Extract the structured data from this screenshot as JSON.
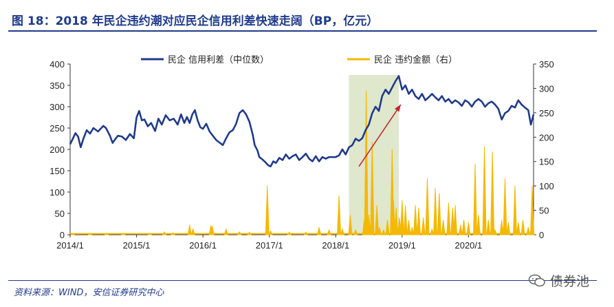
{
  "figure": {
    "title": "图 18：2018 年民企违约潮对应民企信用利差快速走阔（BP，亿元）",
    "source": "资料来源：WIND，安信证券研究中心",
    "watermark": "债券池",
    "watermark_icon": "wechat-icon"
  },
  "colors": {
    "spread_line": "#1f3a8a",
    "default_bars": "#f5b800",
    "highlight_band": "#dfe7cc",
    "arrow": "#c0282d",
    "title": "#1f3a8a"
  },
  "chart_data": {
    "type": "line",
    "x_axis": {
      "tick_labels": [
        "2014/1",
        "2015/1",
        "2016/1",
        "2017/1",
        "2018/1",
        "2019/1",
        "2020/1"
      ],
      "tick_dates": [
        2014.0,
        2015.0,
        2016.0,
        2017.0,
        2018.0,
        2019.0,
        2020.0
      ],
      "range": [
        2014.0,
        2020.98
      ]
    },
    "y_left": {
      "range": [
        0,
        400
      ],
      "ticks": [
        0,
        50,
        100,
        150,
        200,
        250,
        300,
        350,
        400
      ]
    },
    "y_right": {
      "range": [
        0,
        350
      ],
      "ticks": [
        0,
        50,
        100,
        150,
        200,
        250,
        300,
        350
      ]
    },
    "grid": false,
    "legend_position": "top",
    "highlight_period": [
      2018.2,
      2018.95
    ],
    "annotation": {
      "type": "arrow",
      "from": [
        2018.35,
        160
      ],
      "to": [
        2018.98,
        305
      ]
    },
    "series": [
      {
        "name": "民企 信用利差（中位数）",
        "axis": "left",
        "kind": "line",
        "points": [
          [
            2014.0,
            212
          ],
          [
            2014.04,
            225
          ],
          [
            2014.08,
            238
          ],
          [
            2014.12,
            230
          ],
          [
            2014.16,
            205
          ],
          [
            2014.2,
            225
          ],
          [
            2014.25,
            245
          ],
          [
            2014.3,
            237
          ],
          [
            2014.35,
            250
          ],
          [
            2014.42,
            242
          ],
          [
            2014.5,
            255
          ],
          [
            2014.54,
            250
          ],
          [
            2014.6,
            232
          ],
          [
            2014.64,
            215
          ],
          [
            2014.67,
            222
          ],
          [
            2014.72,
            232
          ],
          [
            2014.78,
            230
          ],
          [
            2014.84,
            222
          ],
          [
            2014.9,
            236
          ],
          [
            2014.96,
            226
          ],
          [
            2015.0,
            275
          ],
          [
            2015.04,
            290
          ],
          [
            2015.08,
            268
          ],
          [
            2015.12,
            270
          ],
          [
            2015.17,
            254
          ],
          [
            2015.22,
            262
          ],
          [
            2015.28,
            243
          ],
          [
            2015.33,
            272
          ],
          [
            2015.38,
            258
          ],
          [
            2015.44,
            280
          ],
          [
            2015.5,
            268
          ],
          [
            2015.56,
            272
          ],
          [
            2015.62,
            258
          ],
          [
            2015.67,
            282
          ],
          [
            2015.72,
            262
          ],
          [
            2015.76,
            276
          ],
          [
            2015.8,
            262
          ],
          [
            2015.84,
            282
          ],
          [
            2015.88,
            292
          ],
          [
            2015.92,
            268
          ],
          [
            2015.96,
            252
          ],
          [
            2016.0,
            248
          ],
          [
            2016.05,
            260
          ],
          [
            2016.1,
            242
          ],
          [
            2016.15,
            232
          ],
          [
            2016.2,
            222
          ],
          [
            2016.25,
            216
          ],
          [
            2016.3,
            210
          ],
          [
            2016.35,
            226
          ],
          [
            2016.4,
            240
          ],
          [
            2016.45,
            245
          ],
          [
            2016.5,
            260
          ],
          [
            2016.55,
            285
          ],
          [
            2016.6,
            292
          ],
          [
            2016.65,
            282
          ],
          [
            2016.7,
            265
          ],
          [
            2016.75,
            235
          ],
          [
            2016.78,
            210
          ],
          [
            2016.82,
            198
          ],
          [
            2016.85,
            182
          ],
          [
            2016.9,
            176
          ],
          [
            2016.94,
            170
          ],
          [
            2016.98,
            163
          ],
          [
            2017.02,
            160
          ],
          [
            2017.06,
            172
          ],
          [
            2017.1,
            168
          ],
          [
            2017.15,
            180
          ],
          [
            2017.2,
            175
          ],
          [
            2017.25,
            188
          ],
          [
            2017.3,
            178
          ],
          [
            2017.35,
            184
          ],
          [
            2017.4,
            188
          ],
          [
            2017.45,
            175
          ],
          [
            2017.5,
            182
          ],
          [
            2017.55,
            190
          ],
          [
            2017.6,
            178
          ],
          [
            2017.65,
            172
          ],
          [
            2017.7,
            184
          ],
          [
            2017.75,
            172
          ],
          [
            2017.8,
            182
          ],
          [
            2017.85,
            178
          ],
          [
            2017.9,
            182
          ],
          [
            2017.95,
            182
          ],
          [
            2018.0,
            182
          ],
          [
            2018.05,
            186
          ],
          [
            2018.1,
            200
          ],
          [
            2018.15,
            188
          ],
          [
            2018.2,
            205
          ],
          [
            2018.25,
            210
          ],
          [
            2018.3,
            225
          ],
          [
            2018.35,
            220
          ],
          [
            2018.4,
            226
          ],
          [
            2018.45,
            245
          ],
          [
            2018.5,
            258
          ],
          [
            2018.55,
            285
          ],
          [
            2018.6,
            300
          ],
          [
            2018.65,
            290
          ],
          [
            2018.7,
            325
          ],
          [
            2018.75,
            340
          ],
          [
            2018.8,
            330
          ],
          [
            2018.85,
            345
          ],
          [
            2018.9,
            360
          ],
          [
            2018.95,
            372
          ],
          [
            2019.0,
            340
          ],
          [
            2019.05,
            350
          ],
          [
            2019.1,
            330
          ],
          [
            2019.15,
            340
          ],
          [
            2019.2,
            325
          ],
          [
            2019.25,
            318
          ],
          [
            2019.3,
            330
          ],
          [
            2019.35,
            315
          ],
          [
            2019.4,
            322
          ],
          [
            2019.45,
            330
          ],
          [
            2019.5,
            322
          ],
          [
            2019.55,
            315
          ],
          [
            2019.6,
            325
          ],
          [
            2019.65,
            312
          ],
          [
            2019.7,
            318
          ],
          [
            2019.75,
            308
          ],
          [
            2019.8,
            315
          ],
          [
            2019.85,
            310
          ],
          [
            2019.9,
            302
          ],
          [
            2019.95,
            315
          ],
          [
            2020.0,
            310
          ],
          [
            2020.05,
            300
          ],
          [
            2020.1,
            312
          ],
          [
            2020.15,
            318
          ],
          [
            2020.2,
            312
          ],
          [
            2020.25,
            300
          ],
          [
            2020.3,
            308
          ],
          [
            2020.35,
            312
          ],
          [
            2020.4,
            305
          ],
          [
            2020.45,
            295
          ],
          [
            2020.5,
            270
          ],
          [
            2020.55,
            285
          ],
          [
            2020.6,
            290
          ],
          [
            2020.65,
            302
          ],
          [
            2020.7,
            298
          ],
          [
            2020.75,
            315
          ],
          [
            2020.8,
            305
          ],
          [
            2020.85,
            298
          ],
          [
            2020.9,
            292
          ],
          [
            2020.94,
            258
          ],
          [
            2020.98,
            282
          ]
        ]
      },
      {
        "name": "民企 违约金额（右）",
        "axis": "right",
        "kind": "bars",
        "points": [
          [
            2014.04,
            3
          ],
          [
            2014.3,
            3
          ],
          [
            2014.55,
            3
          ],
          [
            2014.8,
            3
          ],
          [
            2015.2,
            3
          ],
          [
            2015.42,
            6
          ],
          [
            2015.55,
            4
          ],
          [
            2015.8,
            20
          ],
          [
            2015.85,
            12
          ],
          [
            2016.12,
            18
          ],
          [
            2016.14,
            18
          ],
          [
            2016.35,
            12
          ],
          [
            2016.55,
            6
          ],
          [
            2016.7,
            5
          ],
          [
            2016.97,
            100
          ],
          [
            2017.02,
            8
          ],
          [
            2017.3,
            5
          ],
          [
            2017.55,
            5
          ],
          [
            2017.75,
            15
          ],
          [
            2017.9,
            10
          ],
          [
            2018.05,
            80
          ],
          [
            2018.1,
            12
          ],
          [
            2018.22,
            40
          ],
          [
            2018.3,
            10
          ],
          [
            2018.43,
            30
          ],
          [
            2018.46,
            295
          ],
          [
            2018.5,
            40
          ],
          [
            2018.55,
            190
          ],
          [
            2018.62,
            60
          ],
          [
            2018.66,
            15
          ],
          [
            2018.72,
            10
          ],
          [
            2018.78,
            30
          ],
          [
            2018.85,
            175
          ],
          [
            2018.87,
            70
          ],
          [
            2018.91,
            55
          ],
          [
            2018.96,
            35
          ],
          [
            2019.0,
            70
          ],
          [
            2019.05,
            60
          ],
          [
            2019.1,
            30
          ],
          [
            2019.15,
            15
          ],
          [
            2019.2,
            60
          ],
          [
            2019.25,
            55
          ],
          [
            2019.32,
            35
          ],
          [
            2019.38,
            115
          ],
          [
            2019.45,
            12
          ],
          [
            2019.5,
            95
          ],
          [
            2019.56,
            85
          ],
          [
            2019.62,
            30
          ],
          [
            2019.7,
            65
          ],
          [
            2019.76,
            55
          ],
          [
            2019.8,
            60
          ],
          [
            2019.88,
            20
          ],
          [
            2019.93,
            30
          ],
          [
            2020.0,
            25
          ],
          [
            2020.1,
            145
          ],
          [
            2020.15,
            40
          ],
          [
            2020.24,
            180
          ],
          [
            2020.3,
            30
          ],
          [
            2020.36,
            170
          ],
          [
            2020.4,
            10
          ],
          [
            2020.5,
            30
          ],
          [
            2020.55,
            115
          ],
          [
            2020.6,
            25
          ],
          [
            2020.7,
            100
          ],
          [
            2020.75,
            25
          ],
          [
            2020.82,
            30
          ],
          [
            2020.9,
            15
          ],
          [
            2020.96,
            100
          ]
        ]
      }
    ]
  }
}
